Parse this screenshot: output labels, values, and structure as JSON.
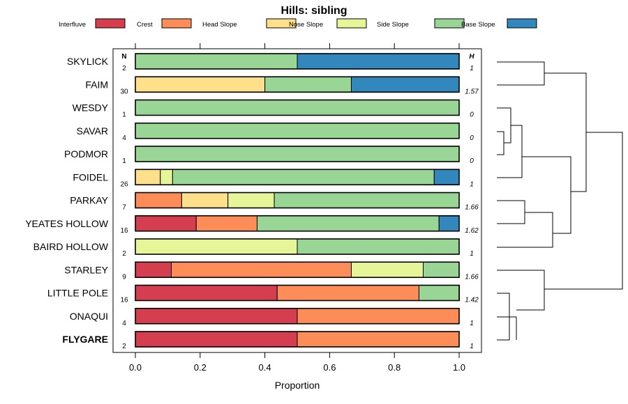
{
  "chart_data": {
    "type": "bar",
    "stacked": true,
    "orientation": "horizontal",
    "title": "Hills: sibling",
    "xlabel": "Proportion",
    "ylabel": "",
    "xlim": [
      0,
      1
    ],
    "xticks": [
      "0.0",
      "0.2",
      "0.4",
      "0.6",
      "0.8",
      "1.0"
    ],
    "n_header": "N",
    "h_header": "H",
    "legend": [
      {
        "name": "Interfluve",
        "color": "#D53E4F"
      },
      {
        "name": "Crest",
        "color": "#FC8D59"
      },
      {
        "name": "Head Slope",
        "color": "#FEE08B"
      },
      {
        "name": "Nose Slope",
        "color": "#E6F598"
      },
      {
        "name": "Side Slope",
        "color": "#99D594"
      },
      {
        "name": "Base Slope",
        "color": "#3288BD"
      }
    ],
    "rows": [
      {
        "name": "SKYLICK",
        "n": "2",
        "h": "1",
        "bold": false,
        "values": [
          0,
          0,
          0,
          0,
          0.5,
          0.5
        ]
      },
      {
        "name": "FAIM",
        "n": "30",
        "h": "1.57",
        "bold": false,
        "values": [
          0,
          0,
          0.4,
          0,
          0.267,
          0.333
        ]
      },
      {
        "name": "WESDY",
        "n": "1",
        "h": "0",
        "bold": false,
        "values": [
          0,
          0,
          0,
          0,
          1,
          0
        ]
      },
      {
        "name": "SAVAR",
        "n": "4",
        "h": "0",
        "bold": false,
        "values": [
          0,
          0,
          0,
          0,
          1,
          0
        ]
      },
      {
        "name": "PODMOR",
        "n": "1",
        "h": "0",
        "bold": false,
        "values": [
          0,
          0,
          0,
          0,
          1,
          0
        ]
      },
      {
        "name": "FOIDEL",
        "n": "26",
        "h": "1",
        "bold": false,
        "values": [
          0,
          0,
          0.077,
          0.038,
          0.808,
          0.077
        ]
      },
      {
        "name": "PARKAY",
        "n": "7",
        "h": "1.66",
        "bold": false,
        "values": [
          0,
          0.143,
          0.143,
          0.143,
          0.571,
          0
        ]
      },
      {
        "name": "YEATES HOLLOW",
        "n": "16",
        "h": "1.62",
        "bold": false,
        "values": [
          0.188,
          0.188,
          0,
          0,
          0.562,
          0.062
        ]
      },
      {
        "name": "BAIRD HOLLOW",
        "n": "2",
        "h": "1",
        "bold": false,
        "values": [
          0,
          0,
          0,
          0.5,
          0.5,
          0
        ]
      },
      {
        "name": "STARLEY",
        "n": "9",
        "h": "1.66",
        "bold": false,
        "values": [
          0.111,
          0.556,
          0,
          0.222,
          0.111,
          0
        ]
      },
      {
        "name": "LITTLE POLE",
        "n": "16",
        "h": "1.42",
        "bold": false,
        "values": [
          0.438,
          0.438,
          0,
          0,
          0.125,
          0
        ]
      },
      {
        "name": "ONAQUI",
        "n": "4",
        "h": "1",
        "bold": false,
        "values": [
          0.5,
          0.5,
          0,
          0,
          0,
          0
        ]
      },
      {
        "name": "FLYGARE",
        "n": "2",
        "h": "1",
        "bold": true,
        "values": [
          0.5,
          0.5,
          0,
          0,
          0,
          0
        ]
      }
    ]
  }
}
